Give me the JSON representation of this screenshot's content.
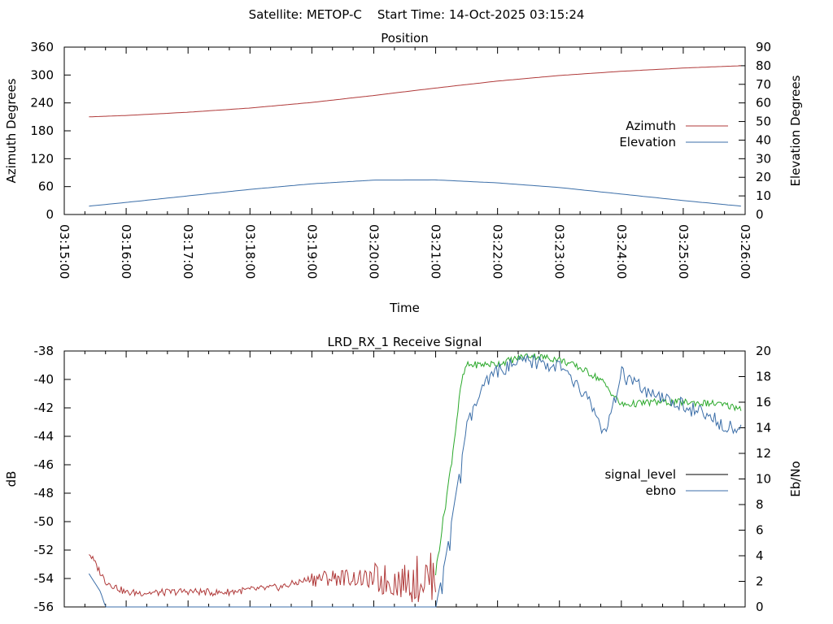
{
  "header": {
    "title": "Satellite: METOP-C    Start Time: 14-Oct-2025 03:15:24"
  },
  "chart_data": [
    {
      "type": "line",
      "title": "Position",
      "xlabel": "Time",
      "ylabel": "Azimuth Degrees",
      "y2label": "Elevation Degrees",
      "x_ticks": [
        "03:15:00",
        "03:16:00",
        "03:17:00",
        "03:18:00",
        "03:19:00",
        "03:20:00",
        "03:21:00",
        "03:22:00",
        "03:23:00",
        "03:24:00",
        "03:25:00",
        "03:26:00"
      ],
      "xlim_minutes": [
        0,
        11
      ],
      "ylim": [
        0,
        360
      ],
      "y_ticks": [
        0,
        60,
        120,
        180,
        240,
        300,
        360
      ],
      "y2lim": [
        0,
        90
      ],
      "y2_ticks": [
        0,
        10,
        20,
        30,
        40,
        50,
        60,
        70,
        80,
        90
      ],
      "legend_position": "right",
      "grid": false,
      "series": [
        {
          "name": "Azimuth",
          "axis": "left",
          "color": "#b03a3a",
          "x": [
            "03:15:24",
            "03:16:00",
            "03:17:00",
            "03:18:00",
            "03:19:00",
            "03:20:00",
            "03:21:00",
            "03:22:00",
            "03:23:00",
            "03:24:00",
            "03:25:00",
            "03:25:56"
          ],
          "values": [
            210,
            213,
            220,
            229,
            241,
            256,
            272,
            287,
            299,
            308,
            315,
            320
          ]
        },
        {
          "name": "Elevation",
          "axis": "right",
          "color": "#3b6ea8",
          "x": [
            "03:15:24",
            "03:16:00",
            "03:17:00",
            "03:18:00",
            "03:19:00",
            "03:20:00",
            "03:21:00",
            "03:22:00",
            "03:23:00",
            "03:24:00",
            "03:25:00",
            "03:25:56"
          ],
          "values": [
            4.5,
            6.5,
            10,
            13.5,
            16.5,
            18.5,
            18.6,
            17,
            14.5,
            11,
            7.5,
            4.5
          ]
        }
      ]
    },
    {
      "type": "line",
      "title": "LRD_RX_1 Receive Signal",
      "xlabel": "",
      "ylabel": "dB",
      "y2label": "Eb/No",
      "xlim_minutes": [
        0,
        11
      ],
      "ylim": [
        -56,
        -38
      ],
      "y_ticks": [
        -56,
        -54,
        -52,
        -50,
        -48,
        -46,
        -44,
        -42,
        -40,
        -38
      ],
      "y2lim": [
        0,
        20
      ],
      "y2_ticks": [
        0,
        2,
        4,
        6,
        8,
        10,
        12,
        14,
        16,
        18,
        20
      ],
      "legend_position": "right",
      "grid": false,
      "series": [
        {
          "name": "signal_level",
          "axis": "left",
          "color": "#000000",
          "segments": [
            {
              "color": "#b03a3a",
              "x": [
                "03:15:24",
                "03:15:40",
                "03:16:00",
                "03:16:30",
                "03:17:00",
                "03:17:30",
                "03:18:00",
                "03:18:30",
                "03:19:00",
                "03:19:30",
                "03:20:00",
                "03:20:30",
                "03:21:00"
              ],
              "values": [
                -52.2,
                -54.2,
                -55.0,
                -55.0,
                -54.9,
                -55.0,
                -54.8,
                -54.6,
                -54.0,
                -53.9,
                -54.1,
                -54.2,
                -53.8
              ]
            },
            {
              "color": "#2aa82a",
              "x": [
                "03:21:00",
                "03:21:15",
                "03:21:25",
                "03:21:30",
                "03:22:00",
                "03:22:30",
                "03:23:00",
                "03:23:20",
                "03:23:40",
                "03:24:00",
                "03:24:30",
                "03:25:00",
                "03:25:30",
                "03:25:56"
              ],
              "values": [
                -53.6,
                -46.0,
                -40.2,
                -39.0,
                -38.9,
                -38.3,
                -38.6,
                -39.2,
                -40.0,
                -41.8,
                -41.6,
                -41.6,
                -41.7,
                -42.0
              ]
            }
          ]
        },
        {
          "name": "ebno",
          "axis": "right",
          "color": "#3b6ea8",
          "x": [
            "03:15:24",
            "03:15:35",
            "03:15:40",
            "03:15:45",
            "03:21:00",
            "03:21:10",
            "03:21:20",
            "03:21:30",
            "03:21:45",
            "03:22:00",
            "03:22:30",
            "03:23:00",
            "03:23:30",
            "03:23:45",
            "03:24:00",
            "03:24:30",
            "03:25:00",
            "03:25:30",
            "03:25:56"
          ],
          "values": [
            2.6,
            1.2,
            0,
            0,
            0,
            4,
            9,
            14,
            17,
            18.5,
            19.2,
            18.8,
            16,
            13.3,
            18.2,
            16.4,
            15.8,
            14.6,
            13.8
          ]
        }
      ]
    }
  ]
}
